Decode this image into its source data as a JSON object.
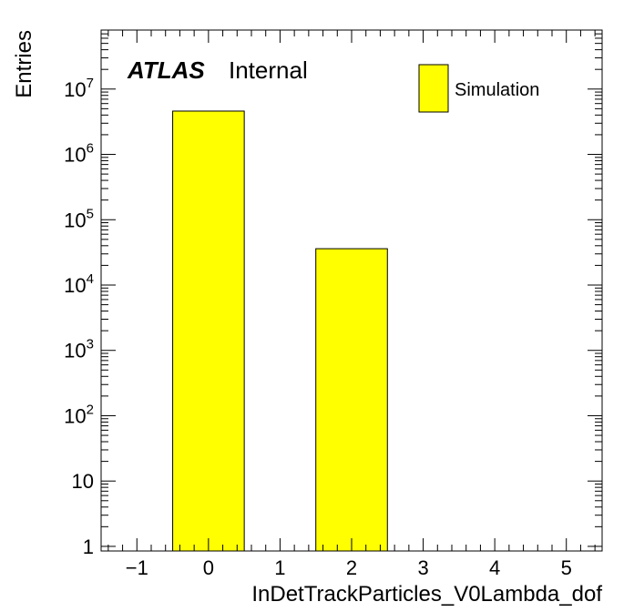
{
  "chart_data": {
    "type": "bar",
    "title": "",
    "xlabel": "InDetTrackParticles_V0Lambda_dof",
    "ylabel": "Entries",
    "xlim": [
      -1.5,
      5.5
    ],
    "ylim": [
      0.85,
      80000000
    ],
    "yscale": "log",
    "grid": false,
    "legend_placement": "top-right",
    "bin_width": 1,
    "bins": [
      {
        "center": 0,
        "value": 4600000
      },
      {
        "center": 2,
        "value": 36000
      }
    ],
    "series": [
      {
        "name": "Simulation",
        "color": "#ffff00"
      }
    ],
    "x_ticks": [
      -1,
      0,
      1,
      2,
      3,
      4,
      5
    ],
    "x_tick_labels": [
      "−1",
      "0",
      "1",
      "2",
      "3",
      "4",
      "5"
    ],
    "y_tick_labels": [
      {
        "value": 1,
        "base": "1",
        "exp": ""
      },
      {
        "value": 10,
        "base": "10",
        "exp": ""
      },
      {
        "value": 100,
        "base": "10",
        "exp": "2"
      },
      {
        "value": 1000,
        "base": "10",
        "exp": "3"
      },
      {
        "value": 10000,
        "base": "10",
        "exp": "4"
      },
      {
        "value": 100000,
        "base": "10",
        "exp": "5"
      },
      {
        "value": 1000000,
        "base": "10",
        "exp": "6"
      },
      {
        "value": 10000000,
        "base": "10",
        "exp": "7"
      }
    ],
    "atlas_label": "ATLAS",
    "atlas_status": "Internal"
  }
}
